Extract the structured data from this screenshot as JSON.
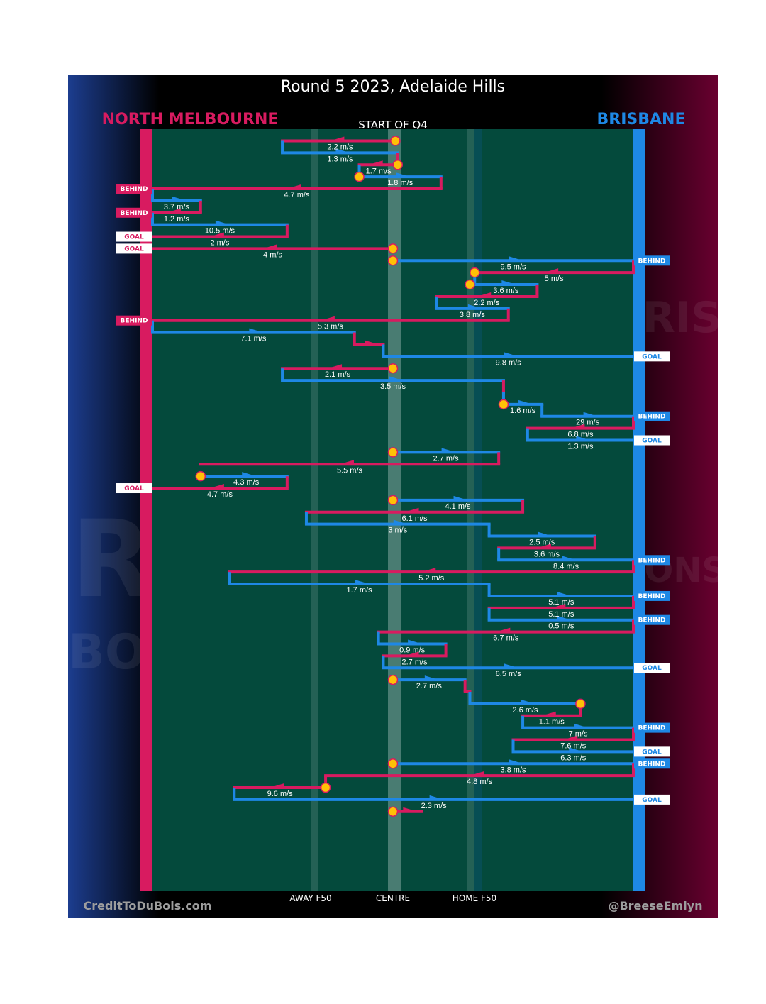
{
  "title": "Round 5 2023, Adelaide Hills",
  "start_label": "START OF Q4",
  "teams": {
    "left": {
      "name": "NORTH MELBOURNE",
      "color": "#d81b60",
      "watermark_line1": "RTH",
      "watermark_line2": "BOURNE"
    },
    "right": {
      "name": "BRISBANE",
      "color": "#1e88e5",
      "watermark_line1": "BRISB",
      "watermark_line2": "LIONS"
    }
  },
  "axis_labels": {
    "away": "AWAY F50",
    "centre": "CENTRE",
    "home": "HOME F50"
  },
  "credits": {
    "left": "CreditToDuBois.com",
    "right": "@BreeseEmlyn"
  },
  "colors": {
    "north": "#d81b60",
    "brisbane": "#1e88e5",
    "field": "#044a3c",
    "centre_marker": "#ffc107"
  },
  "chart_data": {
    "type": "chain-timeline",
    "x_meaning": "field position, 0 = North Melbourne goal line, 100 = Brisbane goal line",
    "y_meaning": "chain sequence order (row index), top to bottom",
    "markers_x": {
      "away_f50": 33,
      "centre": 50,
      "home_f50": 67
    },
    "segments": [
      {
        "row": 1,
        "team": "north",
        "from": 51,
        "to": 27,
        "speed": "2.2 m/s"
      },
      {
        "row": 2,
        "team": "brisbane",
        "from": 27,
        "to": 51,
        "speed": "1.3 m/s"
      },
      {
        "row": 3,
        "team": "north",
        "from": 51,
        "to": 43,
        "speed": "1.7 m/s"
      },
      {
        "row": 4,
        "team": "brisbane",
        "from": 43,
        "to": 60,
        "speed": "1.8 m/s"
      },
      {
        "row": 5,
        "team": "north",
        "from": 60,
        "to": 0,
        "speed": "4.7 m/s",
        "outcome": "BEHIND"
      },
      {
        "row": 6,
        "team": "brisbane",
        "from": 0,
        "to": 10,
        "speed": "3.7 m/s"
      },
      {
        "row": 7,
        "team": "north",
        "from": 10,
        "to": 0,
        "speed": "1.2 m/s",
        "outcome": "BEHIND"
      },
      {
        "row": 8,
        "team": "brisbane",
        "from": 0,
        "to": 28,
        "speed": "10.5 m/s"
      },
      {
        "row": 9,
        "team": "north",
        "from": 28,
        "to": 0,
        "speed": "2 m/s",
        "outcome": "GOAL"
      },
      {
        "row": 10,
        "team": "north",
        "from": 50,
        "to": 0,
        "speed": "4 m/s",
        "outcome": "GOAL"
      },
      {
        "row": 11,
        "team": "brisbane",
        "from": 50,
        "to": 100,
        "speed": "9.5 m/s",
        "outcome": "BEHIND"
      },
      {
        "row": 12,
        "team": "north",
        "from": 100,
        "to": 67,
        "speed": "5 m/s"
      },
      {
        "row": 13,
        "team": "brisbane",
        "from": 67,
        "to": 80,
        "speed": "3.6 m/s"
      },
      {
        "row": 14,
        "team": "north",
        "from": 80,
        "to": 59,
        "speed": "2.2 m/s"
      },
      {
        "row": 15,
        "team": "brisbane",
        "from": 59,
        "to": 74,
        "speed": "3.8 m/s"
      },
      {
        "row": 16,
        "team": "north",
        "from": 74,
        "to": 0,
        "speed": "5.3 m/s",
        "outcome": "BEHIND"
      },
      {
        "row": 17,
        "team": "brisbane",
        "from": 0,
        "to": 42,
        "speed": "7.1 m/s"
      },
      {
        "row": 18,
        "team": "north",
        "from": 42,
        "to": 48,
        "speed": ""
      },
      {
        "row": 19,
        "team": "brisbane",
        "from": 48,
        "to": 100,
        "speed": "9.8 m/s",
        "outcome": "GOAL"
      },
      {
        "row": 20,
        "team": "north",
        "from": 50,
        "to": 27,
        "speed": "2.1 m/s"
      },
      {
        "row": 21,
        "team": "brisbane",
        "from": 27,
        "to": 73,
        "speed": "3.5 m/s"
      },
      {
        "row": 22,
        "team": "north",
        "from": 73,
        "to": 73,
        "speed": ""
      },
      {
        "row": 23,
        "team": "brisbane",
        "from": 73,
        "to": 81,
        "speed": "1.6 m/s"
      },
      {
        "row": 24,
        "team": "brisbane",
        "from": 81,
        "to": 100,
        "speed": "29 m/s",
        "outcome": "BEHIND"
      },
      {
        "row": 25,
        "team": "north",
        "from": 100,
        "to": 78,
        "speed": "6.8 m/s"
      },
      {
        "row": 26,
        "team": "brisbane",
        "from": 78,
        "to": 100,
        "speed": "1.3 m/s",
        "outcome": "GOAL"
      },
      {
        "row": 27,
        "team": "brisbane",
        "from": 50,
        "to": 72,
        "speed": "2.7 m/s"
      },
      {
        "row": 28,
        "team": "north",
        "from": 72,
        "to": 10,
        "speed": "5.5 m/s"
      },
      {
        "row": 29,
        "team": "brisbane",
        "from": 11,
        "to": 28,
        "speed": "4.3 m/s"
      },
      {
        "row": 30,
        "team": "north",
        "from": 28,
        "to": 0,
        "speed": "4.7 m/s",
        "outcome": "GOAL"
      },
      {
        "row": 31,
        "team": "brisbane",
        "from": 50,
        "to": 77,
        "speed": "4.1 m/s"
      },
      {
        "row": 32,
        "team": "north",
        "from": 77,
        "to": 32,
        "speed": "6.1 m/s"
      },
      {
        "row": 33,
        "team": "brisbane",
        "from": 32,
        "to": 70,
        "speed": "3 m/s"
      },
      {
        "row": 34,
        "team": "brisbane",
        "from": 70,
        "to": 92,
        "speed": "2.5 m/s"
      },
      {
        "row": 35,
        "team": "north",
        "from": 92,
        "to": 72,
        "speed": "3.6 m/s"
      },
      {
        "row": 36,
        "team": "brisbane",
        "from": 72,
        "to": 100,
        "speed": "8.4 m/s",
        "outcome": "BEHIND"
      },
      {
        "row": 37,
        "team": "north",
        "from": 100,
        "to": 16,
        "speed": "5.2 m/s"
      },
      {
        "row": 38,
        "team": "brisbane",
        "from": 16,
        "to": 70,
        "speed": "1.7 m/s"
      },
      {
        "row": 39,
        "team": "brisbane",
        "from": 70,
        "to": 100,
        "speed": "5.1 m/s",
        "outcome": "BEHIND"
      },
      {
        "row": 40,
        "team": "north",
        "from": 100,
        "to": 70,
        "speed": "5.1 m/s"
      },
      {
        "row": 41,
        "team": "brisbane",
        "from": 70,
        "to": 100,
        "speed": "0.5 m/s",
        "outcome": "BEHIND"
      },
      {
        "row": 42,
        "team": "north",
        "from": 100,
        "to": 47,
        "speed": "6.7 m/s"
      },
      {
        "row": 43,
        "team": "brisbane",
        "from": 47,
        "to": 61,
        "speed": "0.9 m/s"
      },
      {
        "row": 44,
        "team": "north",
        "from": 61,
        "to": 48,
        "speed": "2.7 m/s"
      },
      {
        "row": 45,
        "team": "brisbane",
        "from": 48,
        "to": 100,
        "speed": "6.5 m/s",
        "outcome": "GOAL"
      },
      {
        "row": 46,
        "team": "brisbane",
        "from": 50,
        "to": 65,
        "speed": "2.7 m/s"
      },
      {
        "row": 47,
        "team": "north",
        "from": 65,
        "to": 66,
        "speed": ""
      },
      {
        "row": 48,
        "team": "brisbane",
        "from": 66,
        "to": 89,
        "speed": "2.6 m/s"
      },
      {
        "row": 49,
        "team": "north",
        "from": 89,
        "to": 77,
        "speed": "1.1 m/s"
      },
      {
        "row": 50,
        "team": "brisbane",
        "from": 77,
        "to": 100,
        "speed": "7 m/s",
        "outcome": "BEHIND"
      },
      {
        "row": 51,
        "team": "north",
        "from": 100,
        "to": 75,
        "speed": "7.6 m/s"
      },
      {
        "row": 52,
        "team": "brisbane",
        "from": 75,
        "to": 100,
        "speed": "6.3 m/s",
        "outcome": "GOAL"
      },
      {
        "row": 53,
        "team": "brisbane",
        "from": 50,
        "to": 100,
        "speed": "3.8 m/s",
        "outcome": "BEHIND"
      },
      {
        "row": 54,
        "team": "north",
        "from": 100,
        "to": 36,
        "speed": "4.8 m/s"
      },
      {
        "row": 55,
        "team": "north",
        "from": 36,
        "to": 17,
        "speed": "9.6 m/s"
      },
      {
        "row": 56,
        "team": "brisbane",
        "from": 17,
        "to": 100,
        "speed": "2.3 m/s",
        "outcome": "GOAL"
      },
      {
        "row": 57,
        "team": "north",
        "from": 50,
        "to": 56,
        "speed": ""
      }
    ],
    "stoppages": [
      {
        "row": 1,
        "x": 50.5
      },
      {
        "row": 3,
        "x": 51
      },
      {
        "row": 4,
        "x": 43
      },
      {
        "row": 10,
        "x": 50
      },
      {
        "row": 11,
        "x": 50
      },
      {
        "row": 12,
        "x": 67
      },
      {
        "row": 13,
        "x": 66
      },
      {
        "row": 20,
        "x": 50
      },
      {
        "row": 23,
        "x": 73
      },
      {
        "row": 27,
        "x": 50
      },
      {
        "row": 29,
        "x": 10
      },
      {
        "row": 31,
        "x": 50
      },
      {
        "row": 46,
        "x": 50
      },
      {
        "row": 48,
        "x": 89
      },
      {
        "row": 53,
        "x": 50
      },
      {
        "row": 55,
        "x": 36
      },
      {
        "row": 57,
        "x": 50
      }
    ]
  }
}
